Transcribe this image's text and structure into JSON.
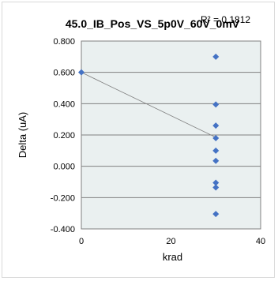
{
  "chart_data": {
    "type": "scatter",
    "title": "45.0_IB_Pos_VS_5p0V_60V_0mV",
    "xlabel": "krad",
    "ylabel": "Delta (uA)",
    "xlim": [
      0,
      40
    ],
    "ylim": [
      -0.4,
      0.8
    ],
    "xticks": [
      "0",
      "20",
      "40"
    ],
    "yticks": [
      "0.800",
      "0.600",
      "0.400",
      "0.200",
      "0.000",
      "-0.200",
      "-0.400"
    ],
    "grid": true,
    "series": [
      {
        "color": "#4472c4",
        "points": [
          {
            "x": 0,
            "y": 0.6
          },
          {
            "x": 30,
            "y": 0.7
          },
          {
            "x": 30,
            "y": 0.395
          },
          {
            "x": 30,
            "y": 0.26
          },
          {
            "x": 30,
            "y": 0.18
          },
          {
            "x": 30,
            "y": 0.1
          },
          {
            "x": 30,
            "y": 0.035
          },
          {
            "x": 30,
            "y": -0.105
          },
          {
            "x": 30,
            "y": -0.135
          },
          {
            "x": 30,
            "y": -0.305
          }
        ]
      }
    ],
    "trendline": {
      "type": "linear",
      "color": "#7f7f7f",
      "from": {
        "x": 0,
        "y": 0.6
      },
      "to": {
        "x": 30,
        "y": 0.185
      },
      "r2_label": "R² = 0.1812"
    },
    "plot_background": "#eaf0f0"
  }
}
